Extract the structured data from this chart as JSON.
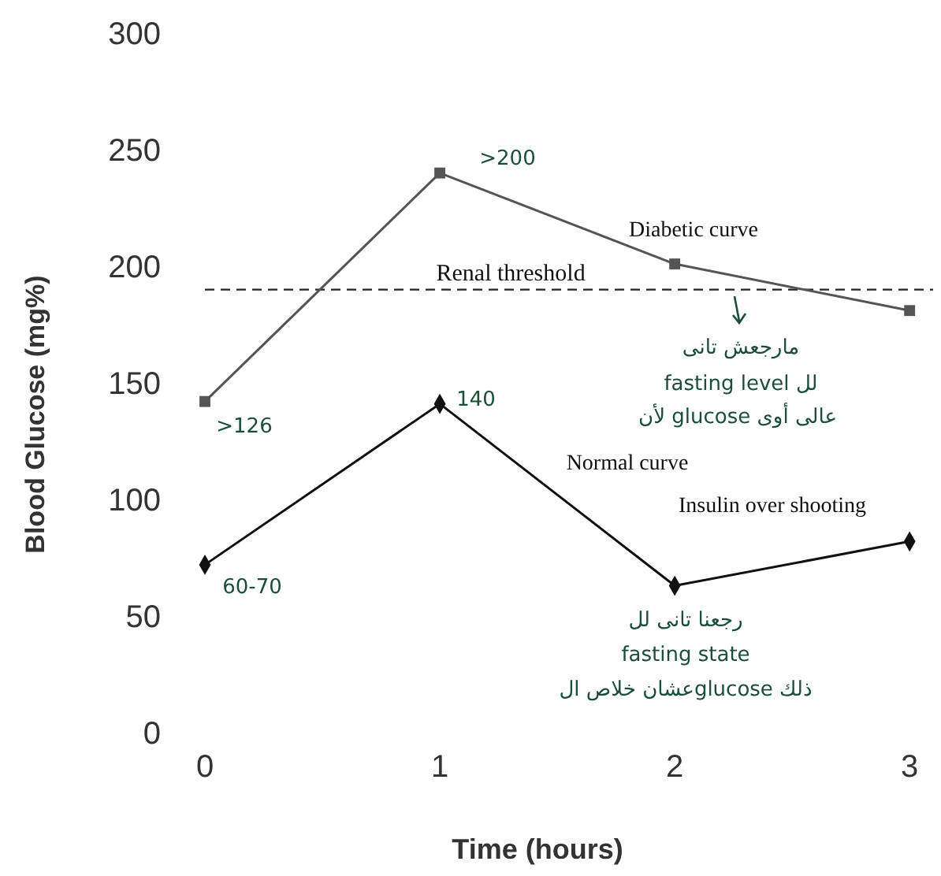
{
  "chart_data": {
    "type": "line",
    "xlabel": "Time (hours)",
    "ylabel": "Blood Glucose (mg%)",
    "x": [
      0,
      1,
      2,
      3
    ],
    "xlim": [
      0,
      3.1
    ],
    "xticks": [
      0,
      1,
      2,
      3
    ],
    "ylim": [
      0,
      300
    ],
    "yticks": [
      0,
      50,
      100,
      150,
      200,
      250,
      300
    ],
    "series": [
      {
        "name": "Diabetic curve",
        "color": "#555555",
        "marker": "square",
        "values": [
          142,
          240,
          201,
          181
        ]
      },
      {
        "name": "Normal curve",
        "color": "#111111",
        "marker": "diamond",
        "values": [
          72,
          141,
          63,
          82
        ]
      }
    ],
    "ref_lines": [
      {
        "axis": "y",
        "value": 190,
        "label": "Renal threshold",
        "line_style": "dashed",
        "color": "#222222"
      }
    ],
    "annotations": [
      ">200",
      ">126",
      "140",
      "60-70",
      "Insulin over shooting",
      "مارجعش تانى",
      "fasting level لل",
      "لأن glucose عالى أوى",
      "رجعنا تانى لل",
      "fasting state",
      "عشان خلاص الglucose ذلك"
    ]
  }
}
